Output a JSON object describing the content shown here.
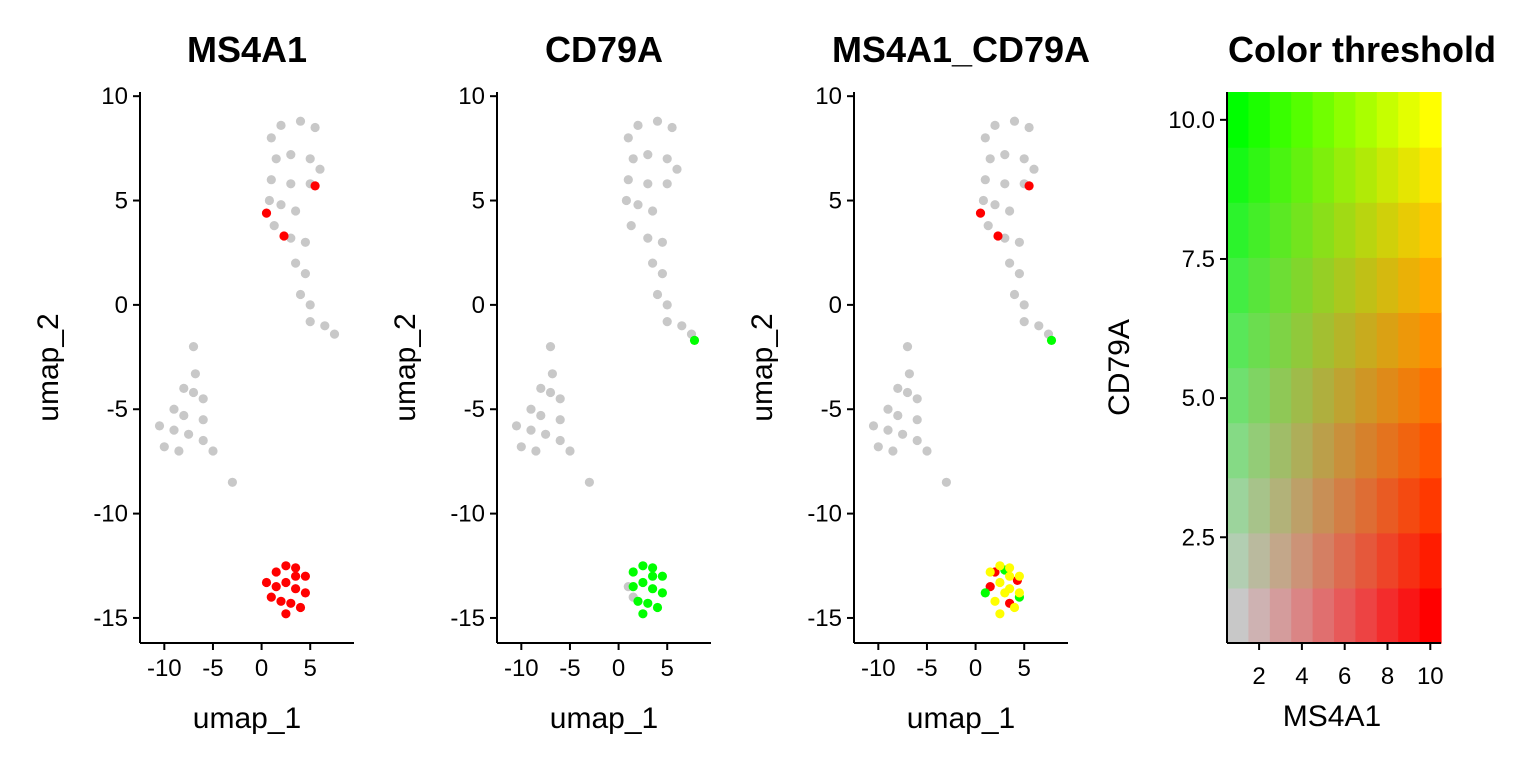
{
  "colors": {
    "not_expressed": "#C8C8C8",
    "feature1_high": "#FF0000",
    "feature2_high": "#00FF00",
    "both_high": "#FFFF00"
  },
  "chart_data": [
    {
      "type": "scatter",
      "panel": "umap",
      "title": "MS4A1",
      "xlabel": "umap_1",
      "ylabel": "umap_2",
      "xlim": [
        -12.5,
        9.5
      ],
      "ylim": [
        -16.2,
        10.2
      ],
      "xticks": [
        -10,
        -5,
        0,
        5
      ],
      "xtick_labels": [
        "-10",
        "-5",
        "0",
        "5"
      ],
      "yticks": [
        -15,
        -10,
        -5,
        0,
        5,
        10
      ],
      "ytick_labels": [
        "-15",
        "-10",
        "-5",
        "0",
        "5",
        "10"
      ],
      "series": [
        {
          "color": "#C8C8C8",
          "points": [
            [
              1,
              8
            ],
            [
              2,
              8.6
            ],
            [
              4,
              8.8
            ],
            [
              5.5,
              8.5
            ],
            [
              1.5,
              7
            ],
            [
              3,
              7.2
            ],
            [
              5,
              7
            ],
            [
              6,
              6.5
            ],
            [
              1,
              6
            ],
            [
              3,
              5.8
            ],
            [
              5,
              5.8
            ],
            [
              0.8,
              5
            ],
            [
              2,
              4.8
            ],
            [
              3.5,
              4.5
            ],
            [
              1.3,
              3.8
            ],
            [
              3,
              3.2
            ],
            [
              4.5,
              3
            ],
            [
              3.5,
              2
            ],
            [
              4.5,
              1.5
            ],
            [
              4,
              0.5
            ],
            [
              5,
              0
            ],
            [
              5,
              -0.8
            ],
            [
              6.5,
              -1
            ],
            [
              7.5,
              -1.4
            ],
            [
              -7,
              -2
            ],
            [
              -6.8,
              -3.3
            ],
            [
              -8,
              -4
            ],
            [
              -7,
              -4.2
            ],
            [
              -6,
              -4.5
            ],
            [
              -9,
              -5
            ],
            [
              -8,
              -5.3
            ],
            [
              -6,
              -5.5
            ],
            [
              -10.5,
              -5.8
            ],
            [
              -9,
              -6
            ],
            [
              -7.5,
              -6.2
            ],
            [
              -6,
              -6.5
            ],
            [
              -10,
              -6.8
            ],
            [
              -8.5,
              -7
            ],
            [
              -5,
              -7
            ],
            [
              -3,
              -8.5
            ]
          ]
        },
        {
          "color": "#FF0000",
          "points": [
            [
              0.5,
              4.4
            ],
            [
              2.3,
              3.3
            ],
            [
              5.5,
              5.7
            ],
            [
              1.5,
              -12.8
            ],
            [
              2.5,
              -12.5
            ],
            [
              3.5,
              -12.6
            ],
            [
              4.5,
              -13
            ],
            [
              0.5,
              -13.3
            ],
            [
              1.5,
              -13.5
            ],
            [
              2.5,
              -13.3
            ],
            [
              3.5,
              -13.6
            ],
            [
              4.5,
              -13.8
            ],
            [
              1,
              -14
            ],
            [
              2,
              -14.2
            ],
            [
              3,
              -14.3
            ],
            [
              4,
              -14.5
            ],
            [
              2.5,
              -14.8
            ],
            [
              3.5,
              -13
            ]
          ]
        }
      ]
    },
    {
      "type": "scatter",
      "panel": "umap",
      "title": "CD79A",
      "xlabel": "umap_1",
      "ylabel": "umap_2",
      "xlim": [
        -12.5,
        9.5
      ],
      "ylim": [
        -16.2,
        10.2
      ],
      "xticks": [
        -10,
        -5,
        0,
        5
      ],
      "xtick_labels": [
        "-10",
        "-5",
        "0",
        "5"
      ],
      "yticks": [
        -15,
        -10,
        -5,
        0,
        5,
        10
      ],
      "ytick_labels": [
        "-15",
        "-10",
        "-5",
        "0",
        "5",
        "10"
      ],
      "series": [
        {
          "color": "#C8C8C8",
          "points": [
            [
              1,
              8
            ],
            [
              2,
              8.6
            ],
            [
              4,
              8.8
            ],
            [
              5.5,
              8.5
            ],
            [
              1.5,
              7
            ],
            [
              3,
              7.2
            ],
            [
              5,
              7
            ],
            [
              6,
              6.5
            ],
            [
              1,
              6
            ],
            [
              3,
              5.8
            ],
            [
              5,
              5.8
            ],
            [
              0.8,
              5
            ],
            [
              2,
              4.8
            ],
            [
              3.5,
              4.5
            ],
            [
              1.3,
              3.8
            ],
            [
              3,
              3.2
            ],
            [
              4.5,
              3
            ],
            [
              3.5,
              2
            ],
            [
              4.5,
              1.5
            ],
            [
              4,
              0.5
            ],
            [
              5,
              0
            ],
            [
              5,
              -0.8
            ],
            [
              6.5,
              -1
            ],
            [
              7.5,
              -1.4
            ],
            [
              -7,
              -2
            ],
            [
              -6.8,
              -3.3
            ],
            [
              -8,
              -4
            ],
            [
              -7,
              -4.2
            ],
            [
              -6,
              -4.5
            ],
            [
              -9,
              -5
            ],
            [
              -8,
              -5.3
            ],
            [
              -6,
              -5.5
            ],
            [
              -10.5,
              -5.8
            ],
            [
              -9,
              -6
            ],
            [
              -7.5,
              -6.2
            ],
            [
              -6,
              -6.5
            ],
            [
              -10,
              -6.8
            ],
            [
              -8.5,
              -7
            ],
            [
              -5,
              -7
            ],
            [
              -3,
              -8.5
            ],
            [
              1,
              -13.5
            ],
            [
              1.5,
              -14
            ]
          ]
        },
        {
          "color": "#00FF00",
          "points": [
            [
              7.8,
              -1.7
            ],
            [
              1.5,
              -12.8
            ],
            [
              2.5,
              -12.5
            ],
            [
              3.5,
              -12.6
            ],
            [
              4.5,
              -13
            ],
            [
              1.5,
              -13.5
            ],
            [
              2.5,
              -13.3
            ],
            [
              3.5,
              -13.6
            ],
            [
              4.5,
              -13.8
            ],
            [
              2,
              -14.2
            ],
            [
              3,
              -14.3
            ],
            [
              4,
              -14.5
            ],
            [
              2.5,
              -14.8
            ],
            [
              3.5,
              -13
            ]
          ]
        }
      ]
    },
    {
      "type": "scatter",
      "panel": "umap",
      "title": "MS4A1_CD79A",
      "xlabel": "umap_1",
      "ylabel": "umap_2",
      "xlim": [
        -12.5,
        9.5
      ],
      "ylim": [
        -16.2,
        10.2
      ],
      "xticks": [
        -10,
        -5,
        0,
        5
      ],
      "xtick_labels": [
        "-10",
        "-5",
        "0",
        "5"
      ],
      "yticks": [
        -15,
        -10,
        -5,
        0,
        5,
        10
      ],
      "ytick_labels": [
        "-15",
        "-10",
        "-5",
        "0",
        "5",
        "10"
      ],
      "series": [
        {
          "color": "#C8C8C8",
          "points": [
            [
              1,
              8
            ],
            [
              2,
              8.6
            ],
            [
              4,
              8.8
            ],
            [
              5.5,
              8.5
            ],
            [
              1.5,
              7
            ],
            [
              3,
              7.2
            ],
            [
              5,
              7
            ],
            [
              6,
              6.5
            ],
            [
              1,
              6
            ],
            [
              3,
              5.8
            ],
            [
              5,
              5.8
            ],
            [
              0.8,
              5
            ],
            [
              2,
              4.8
            ],
            [
              3.5,
              4.5
            ],
            [
              1.3,
              3.8
            ],
            [
              3,
              3.2
            ],
            [
              4.5,
              3
            ],
            [
              3.5,
              2
            ],
            [
              4.5,
              1.5
            ],
            [
              4,
              0.5
            ],
            [
              5,
              0
            ],
            [
              5,
              -0.8
            ],
            [
              6.5,
              -1
            ],
            [
              7.5,
              -1.4
            ],
            [
              -7,
              -2
            ],
            [
              -6.8,
              -3.3
            ],
            [
              -8,
              -4
            ],
            [
              -7,
              -4.2
            ],
            [
              -6,
              -4.5
            ],
            [
              -9,
              -5
            ],
            [
              -8,
              -5.3
            ],
            [
              -6,
              -5.5
            ],
            [
              -10.5,
              -5.8
            ],
            [
              -9,
              -6
            ],
            [
              -7.5,
              -6.2
            ],
            [
              -6,
              -6.5
            ],
            [
              -10,
              -6.8
            ],
            [
              -8.5,
              -7
            ],
            [
              -5,
              -7
            ],
            [
              -3,
              -8.5
            ]
          ]
        },
        {
          "color": "#FF0000",
          "points": [
            [
              0.5,
              4.4
            ],
            [
              2.3,
              3.3
            ],
            [
              5.5,
              5.7
            ],
            [
              1.5,
              -13.5
            ],
            [
              3.5,
              -14.3
            ],
            [
              2,
              -12.8
            ],
            [
              4.3,
              -13.2
            ]
          ]
        },
        {
          "color": "#00FF00",
          "points": [
            [
              7.8,
              -1.7
            ],
            [
              1,
              -13.8
            ],
            [
              3,
              -12.7
            ],
            [
              4.5,
              -14
            ]
          ]
        },
        {
          "color": "#FFFF00",
          "points": [
            [
              1.5,
              -12.8
            ],
            [
              2.5,
              -12.5
            ],
            [
              3.5,
              -12.6
            ],
            [
              4.5,
              -13
            ],
            [
              2.5,
              -13.3
            ],
            [
              3.5,
              -13.6
            ],
            [
              4.5,
              -13.8
            ],
            [
              2,
              -14.2
            ],
            [
              4,
              -14.5
            ],
            [
              2.5,
              -14.8
            ],
            [
              3.5,
              -13
            ],
            [
              3,
              -13.8
            ]
          ]
        }
      ]
    },
    {
      "type": "heatmap",
      "title": "Color threshold",
      "xlabel": "MS4A1",
      "ylabel": "CD79A",
      "grid_size": [
        10,
        10
      ],
      "xlim": [
        0.5,
        10.5
      ],
      "ylim": [
        0.6,
        10.5
      ],
      "xticks": [
        2,
        4,
        6,
        8,
        10
      ],
      "xtick_labels": [
        "2",
        "4",
        "6",
        "8",
        "10"
      ],
      "yticks": [
        2.5,
        5.0,
        7.5,
        10.0
      ],
      "ytick_labels": [
        "2.5",
        "5.0",
        "7.5",
        "10.0"
      ],
      "base_color": "#C8C8C8",
      "x_color": "#FF0000",
      "y_color": "#00FF00",
      "xy_color": "#FFFF00"
    }
  ]
}
